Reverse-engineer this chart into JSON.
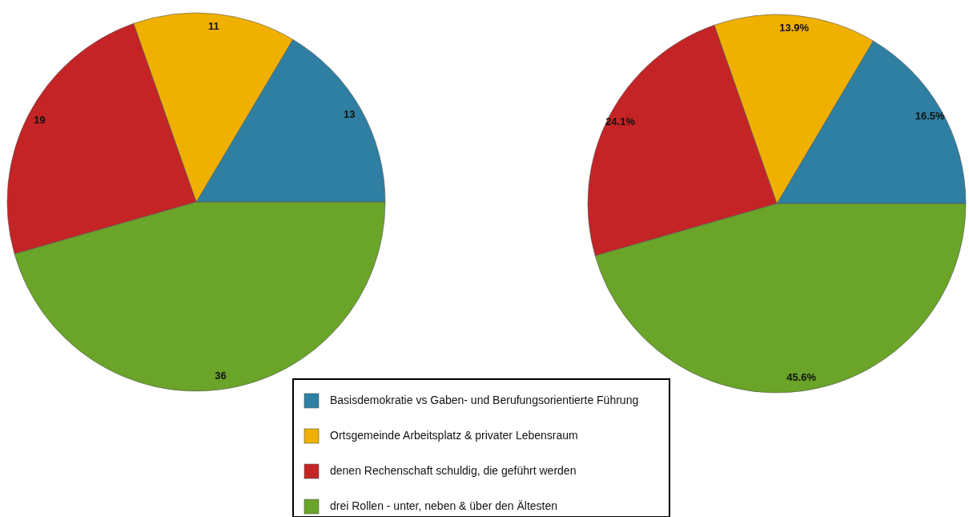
{
  "chart_data": [
    {
      "type": "pie",
      "categories": [
        "Basisdemokratie vs Gaben- und Berufungsorientierte Führung",
        "Ortsgemeinde Arbeitsplatz & privater Lebensraum",
        "denen Rechenschaft schuldig, die geführt werden",
        "drei Rollen - unter, neben & über den Ältesten"
      ],
      "values": [
        13,
        11,
        19,
        36
      ],
      "colors": [
        "#2e7fa1",
        "#f0b000",
        "#c42426",
        "#6aa428"
      ],
      "data_labels": true,
      "legend": "bottom"
    },
    {
      "type": "pie",
      "categories": [
        null,
        null,
        null,
        null
      ],
      "values": [
        16.5,
        13.9,
        24.1,
        45.6
      ],
      "colors": [
        "#2e7fa1",
        "#f0b000",
        "#c42426",
        "#6aa428"
      ],
      "value_labels": [
        "16.5%",
        "13.9%",
        "24.1%",
        "45.6%"
      ]
    }
  ]
}
